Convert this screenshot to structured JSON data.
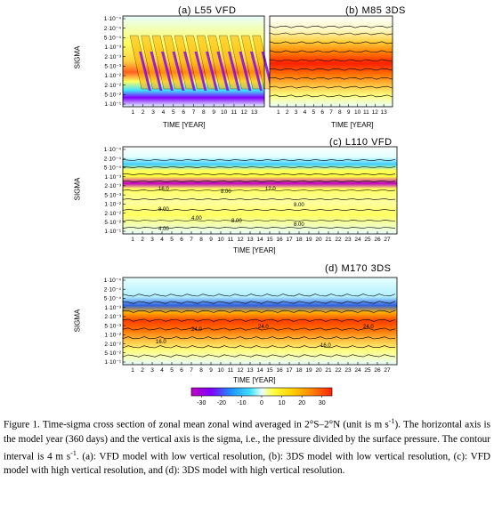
{
  "y_tick_labels": [
    "1·10⁻⁴",
    "2·10⁻⁴",
    "5·10⁻⁴",
    "1·10⁻³",
    "2·10⁻³",
    "5·10⁻³",
    "1·10⁻²",
    "2·10⁻²",
    "5·10⁻²",
    "1·10⁻¹"
  ],
  "colors": {
    "min": "#c000c0",
    "m30": "#8000ff",
    "m20": "#2090ff",
    "m10": "#40e0ff",
    "zero": "#e8ffff",
    "p10": "#ffff40",
    "p20": "#ffb000",
    "p30": "#ff2000"
  },
  "chart_data": [
    {
      "type": "heatmap",
      "panel": "a",
      "title": "(a) L55 VFD",
      "xlabel": "TIME [YEAR]",
      "ylabel": "SIGMA",
      "x_ticks": [
        "1",
        "2",
        "3",
        "4",
        "5",
        "6",
        "7",
        "8",
        "9",
        "10",
        "11",
        "12",
        "13"
      ],
      "xlim": [
        0,
        14
      ],
      "y_scale": "log",
      "ylim": [
        0.1,
        0.0001
      ],
      "contour_interval": 4,
      "contour_labels": []
    },
    {
      "type": "heatmap",
      "panel": "b",
      "title": "(b) M85 3DS",
      "xlabel": "TIME [YEAR]",
      "ylabel": "",
      "x_ticks": [
        "1",
        "2",
        "3",
        "4",
        "5",
        "6",
        "7",
        "8",
        "9",
        "10",
        "11",
        "12",
        "13"
      ],
      "xlim": [
        0,
        14
      ],
      "y_scale": "log",
      "ylim": [
        0.1,
        0.0001
      ],
      "contour_interval": 4,
      "contour_labels": []
    },
    {
      "type": "heatmap",
      "panel": "c",
      "title": "(c) L110 VFD",
      "xlabel": "TIME [YEAR]",
      "ylabel": "SIGMA",
      "x_ticks": [
        "1",
        "2",
        "3",
        "4",
        "5",
        "6",
        "7",
        "8",
        "9",
        "10",
        "11",
        "12",
        "13",
        "14",
        "15",
        "16",
        "17",
        "18",
        "19",
        "20",
        "21",
        "22",
        "23",
        "24",
        "25",
        "26",
        "27"
      ],
      "xlim": [
        0,
        28
      ],
      "y_scale": "log",
      "ylim": [
        0.1,
        0.0001
      ],
      "contour_interval": 4,
      "contour_labels": [
        "16.0",
        "8.00",
        "12.0",
        "8.00",
        "4.00",
        "8.00",
        "8.00",
        "8.00",
        "4.00"
      ]
    },
    {
      "type": "heatmap",
      "panel": "d",
      "title": "(d) M170 3DS",
      "xlabel": "TIME [YEAR]",
      "ylabel": "SIGMA",
      "x_ticks": [
        "1",
        "2",
        "3",
        "4",
        "5",
        "6",
        "7",
        "8",
        "9",
        "10",
        "11",
        "12",
        "13",
        "14",
        "15",
        "16",
        "17",
        "18",
        "19",
        "20",
        "21",
        "22",
        "23",
        "24",
        "25",
        "26",
        "27"
      ],
      "xlim": [
        0,
        28
      ],
      "y_scale": "log",
      "ylim": [
        0.1,
        0.0001
      ],
      "contour_interval": 4,
      "contour_labels": [
        "24.0",
        "24.0",
        "16.0",
        "24.0",
        "16.0"
      ]
    }
  ],
  "colorbar": {
    "ticks": [
      "-30",
      "-20",
      "-10",
      "0",
      "10",
      "20",
      "30"
    ],
    "min": -35,
    "max": 35
  },
  "caption": {
    "text_1": "Figure 1. Time-sigma cross section of zonal mean zonal wind averaged in 2°S–2°N (unit is m s",
    "sup_1": "-1",
    "text_2": "). The horizontal axis is the model year (360 days) and the vertical axis is the sigma, i.e., the pressure divided by the surface pressure. The contour interval is 4 m s",
    "sup_2": "-1",
    "text_3": ". (a): VFD model with low vertical resolution, (b): 3DS model with low vertical resolution, (c): VFD model with high vertical resolution, and (d): 3DS model with high vertical resolution."
  }
}
